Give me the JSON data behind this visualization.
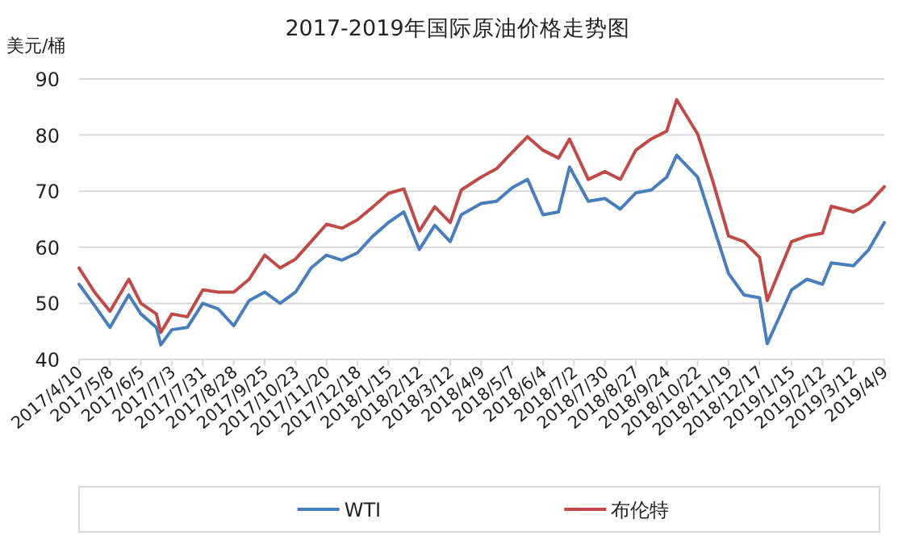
{
  "chart_data": {
    "type": "line",
    "title": "2017-2019年国际原油价格走势图",
    "ylabel": "美元/桶",
    "x": [
      "2017-04-10",
      "2017-04-24",
      "2017-05-08",
      "2017-05-25",
      "2017-06-05",
      "2017-06-19",
      "2017-06-23",
      "2017-07-03",
      "2017-07-17",
      "2017-07-31",
      "2017-08-14",
      "2017-08-28",
      "2017-09-11",
      "2017-09-25",
      "2017-10-09",
      "2017-10-23",
      "2017-11-06",
      "2017-11-20",
      "2017-12-04",
      "2017-12-18",
      "2018-01-01",
      "2018-01-15",
      "2018-01-29",
      "2018-02-12",
      "2018-02-26",
      "2018-03-12",
      "2018-03-22",
      "2018-04-09",
      "2018-04-23",
      "2018-05-07",
      "2018-05-21",
      "2018-06-04",
      "2018-06-18",
      "2018-06-28",
      "2018-07-15",
      "2018-07-30",
      "2018-08-13",
      "2018-08-27",
      "2018-09-10",
      "2018-09-24",
      "2018-10-03",
      "2018-10-22",
      "2018-11-05",
      "2018-11-19",
      "2018-12-03",
      "2018-12-17",
      "2018-12-24",
      "2019-01-15",
      "2019-01-29",
      "2019-02-12",
      "2019-02-20",
      "2019-03-12",
      "2019-03-26",
      "2019-04-09"
    ],
    "series": [
      {
        "name": "WTI",
        "color": "#4a7ebb",
        "values": [
          53.4,
          49.6,
          45.7,
          51.5,
          48.1,
          45.7,
          42.6,
          45.3,
          45.7,
          50.0,
          49.0,
          46.0,
          50.5,
          52.0,
          50.0,
          52.0,
          56.3,
          58.6,
          57.7,
          59.0,
          62.0,
          64.4,
          66.3,
          59.6,
          63.9,
          61.0,
          65.8,
          67.8,
          68.2,
          70.6,
          72.1,
          65.8,
          66.3,
          74.3,
          68.2,
          68.7,
          66.8,
          69.7,
          70.2,
          72.5,
          76.4,
          72.5,
          63.9,
          55.3,
          51.5,
          51.0,
          42.8,
          52.4,
          54.3,
          53.4,
          57.2,
          56.7,
          59.6,
          64.4
        ]
      },
      {
        "name": "布伦特",
        "color": "#be4b48",
        "values": [
          56.3,
          52.0,
          48.6,
          54.3,
          50.0,
          48.1,
          44.8,
          48.1,
          47.6,
          52.4,
          52.0,
          52.0,
          54.3,
          58.6,
          56.3,
          57.9,
          61.0,
          64.1,
          63.4,
          64.9,
          67.2,
          69.6,
          70.4,
          62.9,
          67.2,
          64.4,
          70.2,
          72.5,
          74.0,
          76.9,
          79.7,
          77.3,
          75.9,
          79.3,
          72.1,
          73.5,
          72.1,
          77.3,
          79.3,
          80.7,
          86.3,
          80.2,
          71.6,
          62.0,
          61.0,
          58.2,
          50.5,
          61.0,
          62.0,
          62.5,
          67.3,
          66.3,
          67.8,
          70.8
        ]
      }
    ],
    "xlim": [
      "2017-04-10",
      "2019-04-09"
    ],
    "xticks": [
      {
        "value": "2017-04-10",
        "label": "2017/4/10"
      },
      {
        "value": "2017-05-08",
        "label": "2017/5/8"
      },
      {
        "value": "2017-06-05",
        "label": "2017/6/5"
      },
      {
        "value": "2017-07-03",
        "label": "2017/7/3"
      },
      {
        "value": "2017-07-31",
        "label": "2017/7/31"
      },
      {
        "value": "2017-08-28",
        "label": "2017/8/28"
      },
      {
        "value": "2017-09-25",
        "label": "2017/9/25"
      },
      {
        "value": "2017-10-23",
        "label": "2017/10/23"
      },
      {
        "value": "2017-11-20",
        "label": "2017/11/20"
      },
      {
        "value": "2017-12-18",
        "label": "2017/12/18"
      },
      {
        "value": "2018-01-15",
        "label": "2018/1/15"
      },
      {
        "value": "2018-02-12",
        "label": "2018/2/12"
      },
      {
        "value": "2018-03-12",
        "label": "2018/3/12"
      },
      {
        "value": "2018-04-09",
        "label": "2018/4/9"
      },
      {
        "value": "2018-05-07",
        "label": "2018/5/7"
      },
      {
        "value": "2018-06-04",
        "label": "2018/6/4"
      },
      {
        "value": "2018-07-02",
        "label": "2018/7/2"
      },
      {
        "value": "2018-07-30",
        "label": "2018/7/30"
      },
      {
        "value": "2018-08-27",
        "label": "2018/8/27"
      },
      {
        "value": "2018-09-24",
        "label": "2018/9/24"
      },
      {
        "value": "2018-10-22",
        "label": "2018/10/22"
      },
      {
        "value": "2018-11-19",
        "label": "2018/11/19"
      },
      {
        "value": "2018-12-17",
        "label": "2018/12/17"
      },
      {
        "value": "2019-01-15",
        "label": "2019/1/15"
      },
      {
        "value": "2019-02-12",
        "label": "2019/2/12"
      },
      {
        "value": "2019-03-12",
        "label": "2019/3/12"
      },
      {
        "value": "2019-04-09",
        "label": "2019/4/9"
      }
    ],
    "ylim": [
      40,
      90
    ],
    "yticks": [
      40,
      50,
      60,
      70,
      80,
      90
    ],
    "grid": "y",
    "legend": "bottom",
    "marker": "none",
    "line_style": "solid"
  }
}
